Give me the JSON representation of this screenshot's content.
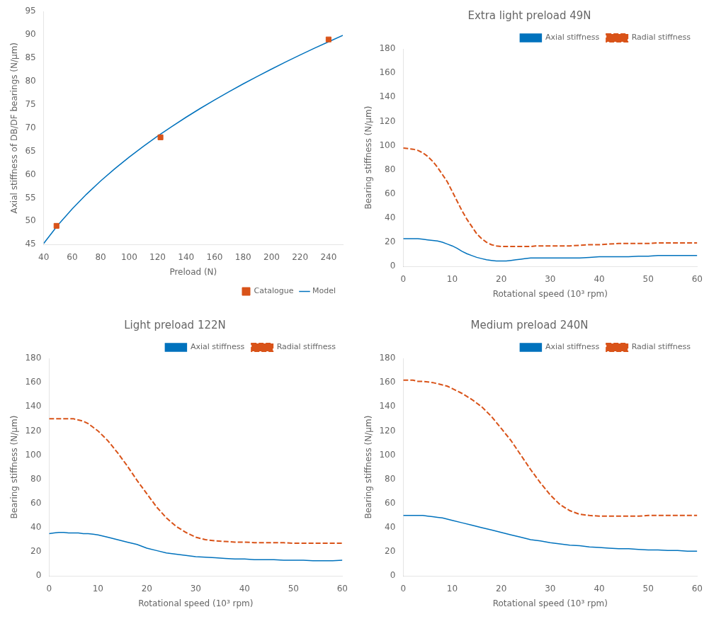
{
  "chart_data": [
    {
      "type": "line",
      "xlabel": "Preload (N)",
      "ylabel": "Axial stiffness of DB/DF bearings (N/μm)",
      "xlim": [
        40,
        250
      ],
      "ylim": [
        45,
        95
      ],
      "xticks": [
        40,
        60,
        80,
        100,
        120,
        140,
        160,
        180,
        200,
        220,
        240
      ],
      "yticks": [
        45,
        50,
        55,
        60,
        65,
        70,
        75,
        80,
        85,
        90,
        95
      ],
      "grid": false,
      "legend": "lower right",
      "series": [
        {
          "name": "Model",
          "type": "line",
          "color": "#0072BD",
          "line_style": "solid",
          "x": [
            40,
            50,
            60,
            70,
            80,
            90,
            100,
            110,
            120,
            130,
            140,
            150,
            160,
            170,
            180,
            190,
            200,
            210,
            220,
            230,
            240,
            250
          ],
          "values": [
            45.22,
            49.16,
            52.64,
            55.77,
            58.63,
            61.28,
            63.75,
            66.06,
            68.25,
            70.33,
            72.31,
            74.21,
            76.02,
            77.77,
            79.45,
            81.08,
            82.65,
            84.18,
            85.66,
            87.1,
            88.5,
            89.86
          ]
        },
        {
          "name": "Catalogue",
          "type": "scatter",
          "color": "#D95319",
          "marker": "square",
          "x": [
            49,
            122,
            240
          ],
          "values": [
            49,
            68,
            89
          ]
        }
      ]
    },
    {
      "type": "line",
      "title": "Extra light preload 49N",
      "xlabel": "Rotational speed (10³ rpm)",
      "ylabel": "Bearing stiffness (N/μm)",
      "xlim": [
        0,
        60
      ],
      "ylim": [
        0,
        180
      ],
      "xticks": [
        0,
        10,
        20,
        30,
        40,
        50,
        60
      ],
      "yticks": [
        0,
        20,
        40,
        60,
        80,
        100,
        120,
        140,
        160,
        180
      ],
      "grid": false,
      "legend": "upper right",
      "x": [
        0,
        1,
        2,
        3,
        4,
        5,
        6,
        7,
        8,
        9,
        10,
        11,
        12,
        13,
        14,
        15,
        16,
        17,
        18,
        19,
        20,
        21,
        22,
        23,
        24,
        25,
        26,
        27,
        28,
        29,
        30,
        32,
        34,
        36,
        38,
        40,
        42,
        44,
        46,
        48,
        50,
        52,
        54,
        56,
        58,
        60
      ],
      "series": [
        {
          "name": "Axial stiffness",
          "color": "#0072BD",
          "line_style": "solid",
          "values": [
            23,
            23,
            23,
            23,
            22.5,
            22,
            21.5,
            21,
            20,
            18.5,
            17,
            15,
            12.5,
            10.5,
            9,
            7.5,
            6.5,
            5.5,
            5,
            4.5,
            4.5,
            4.5,
            5,
            5.5,
            6,
            6.5,
            7,
            7,
            7,
            7,
            7,
            7,
            7,
            7,
            7.5,
            8,
            8,
            8,
            8,
            8.5,
            8.5,
            9,
            9,
            9,
            9,
            9
          ]
        },
        {
          "name": "Radial stiffness",
          "color": "#D95319",
          "line_style": "dashed",
          "values": [
            98,
            97.5,
            97,
            96,
            94,
            91,
            87,
            82,
            76,
            70,
            62,
            54,
            46,
            39,
            33,
            27,
            23,
            20,
            18,
            17,
            16.5,
            16.5,
            16.5,
            16.5,
            16.5,
            16.5,
            16.5,
            17,
            17,
            17,
            17,
            17,
            17,
            17.5,
            18,
            18,
            18.5,
            19,
            19,
            19,
            19,
            19.5,
            19.5,
            19.5,
            19.5,
            19.5
          ]
        }
      ]
    },
    {
      "type": "line",
      "title": "Light preload 122N",
      "xlabel": "Rotational speed (10³ rpm)",
      "ylabel": "Bearing stiffness (N/μm)",
      "xlim": [
        0,
        60
      ],
      "ylim": [
        0,
        180
      ],
      "xticks": [
        0,
        10,
        20,
        30,
        40,
        50,
        60
      ],
      "yticks": [
        0,
        20,
        40,
        60,
        80,
        100,
        120,
        140,
        160,
        180
      ],
      "grid": false,
      "legend": "upper right",
      "x": [
        0,
        1,
        2,
        3,
        4,
        5,
        6,
        7,
        8,
        9,
        10,
        12,
        14,
        16,
        18,
        20,
        22,
        24,
        26,
        28,
        30,
        32,
        34,
        36,
        38,
        40,
        42,
        44,
        46,
        48,
        50,
        52,
        54,
        56,
        58,
        60
      ],
      "series": [
        {
          "name": "Axial stiffness",
          "color": "#0072BD",
          "line_style": "solid",
          "values": [
            35,
            35.5,
            36,
            36,
            35.5,
            35.5,
            35.5,
            35,
            35,
            34.5,
            34,
            32,
            30,
            28,
            26,
            23,
            21,
            19,
            18,
            17,
            16,
            15.5,
            15,
            14.5,
            14,
            14,
            13.5,
            13.5,
            13.5,
            13,
            13,
            13,
            12.5,
            12.5,
            12.5,
            13
          ]
        },
        {
          "name": "Radial stiffness",
          "color": "#D95319",
          "line_style": "dashed",
          "values": [
            130,
            130,
            130,
            130,
            130,
            130,
            129,
            128,
            126,
            123,
            120,
            112,
            102,
            91,
            79,
            68,
            57,
            48,
            41,
            36,
            32,
            30,
            29,
            28.5,
            28,
            28,
            27.5,
            27.5,
            27.5,
            27.5,
            27,
            27,
            27,
            27,
            27,
            27
          ]
        }
      ]
    },
    {
      "type": "line",
      "title": "Medium preload 240N",
      "xlabel": "Rotational speed (10³ rpm)",
      "ylabel": "Bearing stiffness (N/μm)",
      "xlim": [
        0,
        60
      ],
      "ylim": [
        0,
        180
      ],
      "xticks": [
        0,
        10,
        20,
        30,
        40,
        50,
        60
      ],
      "yticks": [
        0,
        20,
        40,
        60,
        80,
        100,
        120,
        140,
        160,
        180
      ],
      "grid": false,
      "legend": "upper right",
      "x": [
        0,
        1,
        2,
        3,
        4,
        5,
        6,
        7,
        8,
        9,
        10,
        12,
        14,
        16,
        18,
        20,
        22,
        24,
        26,
        28,
        30,
        32,
        34,
        36,
        38,
        40,
        42,
        44,
        46,
        48,
        50,
        52,
        54,
        56,
        58,
        60
      ],
      "series": [
        {
          "name": "Axial stiffness",
          "color": "#0072BD",
          "line_style": "solid",
          "values": [
            50,
            50,
            50,
            50,
            50,
            49.5,
            49,
            48.5,
            48,
            47,
            46,
            44,
            42,
            40,
            38,
            36,
            34,
            32,
            30,
            29,
            27.5,
            26.5,
            25.5,
            25,
            24,
            23.5,
            23,
            22.5,
            22.5,
            22,
            21.5,
            21.5,
            21,
            21,
            20.5,
            20.5
          ]
        },
        {
          "name": "Radial stiffness",
          "color": "#D95319",
          "line_style": "dashed",
          "values": [
            162,
            162,
            162,
            161,
            161,
            160.5,
            160,
            159,
            158,
            157,
            155,
            151,
            146,
            140,
            132,
            122,
            112,
            100,
            88,
            77,
            67,
            59,
            54,
            51,
            50,
            49.5,
            49.5,
            49.5,
            49.5,
            49.5,
            50,
            50,
            50,
            50,
            50,
            50
          ]
        }
      ]
    }
  ]
}
